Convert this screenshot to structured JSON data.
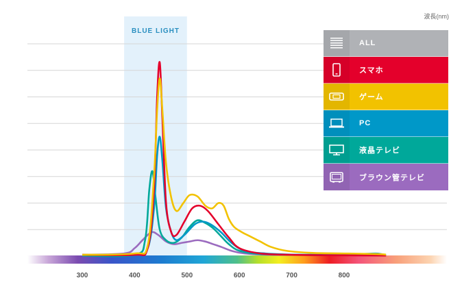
{
  "unit_label": "波長(nm)",
  "legend": [
    {
      "key": "all",
      "label": "ALL",
      "color": "#b0b2b6",
      "icon": "list-icon"
    },
    {
      "key": "smartphone",
      "label": "スマホ",
      "color": "#e4002b",
      "icon": "smartphone-icon"
    },
    {
      "key": "game",
      "label": "ゲーム",
      "color": "#f2c200",
      "icon": "handheld-game-icon"
    },
    {
      "key": "pc",
      "label": "PC",
      "color": "#0098c8",
      "icon": "laptop-icon"
    },
    {
      "key": "lcd_tv",
      "label": "液晶テレビ",
      "color": "#00a89a",
      "icon": "monitor-icon"
    },
    {
      "key": "crt_tv",
      "label": "ブラウン管テレビ",
      "color": "#9b6bbf",
      "icon": "crt-tv-icon"
    }
  ],
  "chart_data": {
    "type": "line",
    "title": "",
    "xlabel": "波長(nm)",
    "ylabel": "",
    "xlim": [
      200,
      1000
    ],
    "ylim": [
      0,
      8
    ],
    "xticks": [
      300,
      400,
      500,
      600,
      700,
      800
    ],
    "grid": true,
    "legend_position": "top-right",
    "highlight_band": {
      "label": "BLUE LIGHT",
      "from": 380,
      "to": 500
    },
    "series": [
      {
        "name": "スマホ",
        "color": "#e4002b",
        "points": [
          [
            300,
            0.05
          ],
          [
            400,
            0.05
          ],
          [
            425,
            0.3
          ],
          [
            437,
            2.5
          ],
          [
            443,
            6.0
          ],
          [
            448,
            7.3
          ],
          [
            453,
            5.2
          ],
          [
            460,
            2.0
          ],
          [
            470,
            0.9
          ],
          [
            480,
            0.8
          ],
          [
            495,
            1.3
          ],
          [
            510,
            1.8
          ],
          [
            525,
            1.9
          ],
          [
            540,
            1.7
          ],
          [
            560,
            1.2
          ],
          [
            580,
            0.7
          ],
          [
            600,
            0.3
          ],
          [
            640,
            0.1
          ],
          [
            700,
            0.05
          ],
          [
            800,
            0.03
          ],
          [
            880,
            0.02
          ]
        ]
      },
      {
        "name": "ゲーム",
        "color": "#f2c200",
        "points": [
          [
            300,
            0.05
          ],
          [
            400,
            0.1
          ],
          [
            425,
            0.4
          ],
          [
            437,
            3.0
          ],
          [
            443,
            5.5
          ],
          [
            448,
            6.7
          ],
          [
            453,
            5.5
          ],
          [
            460,
            3.5
          ],
          [
            470,
            2.2
          ],
          [
            480,
            1.7
          ],
          [
            493,
            2.0
          ],
          [
            505,
            2.3
          ],
          [
            520,
            2.25
          ],
          [
            535,
            1.9
          ],
          [
            548,
            1.8
          ],
          [
            560,
            2.0
          ],
          [
            570,
            1.9
          ],
          [
            580,
            1.4
          ],
          [
            590,
            1.1
          ],
          [
            605,
            0.9
          ],
          [
            620,
            0.75
          ],
          [
            640,
            0.55
          ],
          [
            660,
            0.35
          ],
          [
            690,
            0.2
          ],
          [
            740,
            0.12
          ],
          [
            800,
            0.1
          ],
          [
            860,
            0.08
          ],
          [
            880,
            0.06
          ]
        ]
      },
      {
        "name": "PC",
        "color": "#0098c8",
        "points": [
          [
            300,
            0.05
          ],
          [
            400,
            0.05
          ],
          [
            425,
            0.3
          ],
          [
            437,
            1.8
          ],
          [
            443,
            3.8
          ],
          [
            448,
            4.5
          ],
          [
            453,
            3.6
          ],
          [
            460,
            1.8
          ],
          [
            470,
            0.9
          ],
          [
            480,
            0.6
          ],
          [
            495,
            0.8
          ],
          [
            515,
            1.2
          ],
          [
            530,
            1.3
          ],
          [
            545,
            1.2
          ],
          [
            565,
            0.9
          ],
          [
            585,
            0.5
          ],
          [
            610,
            0.2
          ],
          [
            650,
            0.1
          ],
          [
            720,
            0.05
          ],
          [
            800,
            0.05
          ],
          [
            860,
            0.1
          ],
          [
            880,
            0.03
          ]
        ]
      },
      {
        "name": "液晶テレビ",
        "color": "#00a89a",
        "points": [
          [
            300,
            0.02
          ],
          [
            400,
            0.05
          ],
          [
            420,
            0.6
          ],
          [
            428,
            2.5
          ],
          [
            434,
            3.2
          ],
          [
            440,
            2.2
          ],
          [
            448,
            1.0
          ],
          [
            460,
            0.6
          ],
          [
            475,
            0.5
          ],
          [
            490,
            0.7
          ],
          [
            505,
            1.1
          ],
          [
            520,
            1.35
          ],
          [
            535,
            1.25
          ],
          [
            550,
            1.05
          ],
          [
            565,
            0.75
          ],
          [
            580,
            0.45
          ],
          [
            600,
            0.2
          ],
          [
            640,
            0.08
          ],
          [
            720,
            0.05
          ],
          [
            800,
            0.05
          ],
          [
            880,
            0.02
          ]
        ]
      },
      {
        "name": "ブラウン管テレビ",
        "color": "#9b6bbf",
        "points": [
          [
            300,
            0.05
          ],
          [
            380,
            0.1
          ],
          [
            400,
            0.3
          ],
          [
            415,
            0.6
          ],
          [
            432,
            0.9
          ],
          [
            445,
            0.8
          ],
          [
            460,
            0.55
          ],
          [
            475,
            0.45
          ],
          [
            490,
            0.5
          ],
          [
            505,
            0.55
          ],
          [
            520,
            0.6
          ],
          [
            535,
            0.55
          ],
          [
            550,
            0.45
          ],
          [
            565,
            0.35
          ],
          [
            585,
            0.2
          ],
          [
            610,
            0.1
          ],
          [
            660,
            0.05
          ],
          [
            760,
            0.05
          ],
          [
            880,
            0.02
          ]
        ]
      }
    ]
  }
}
